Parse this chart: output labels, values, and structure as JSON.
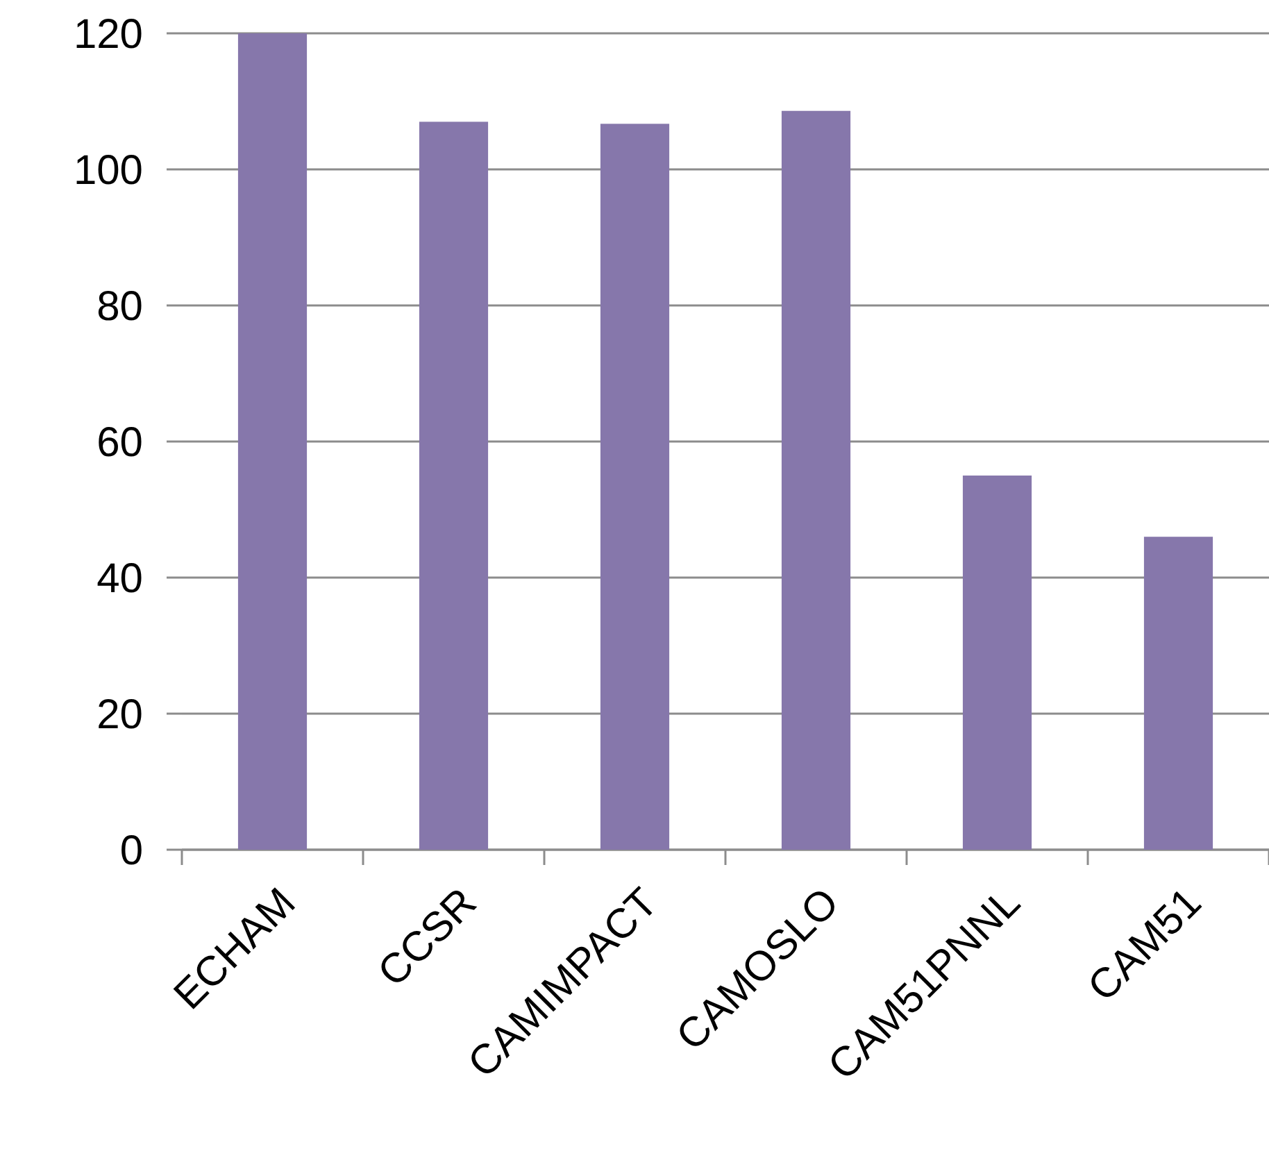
{
  "chart_data": {
    "type": "bar",
    "categories": [
      "ECHAM",
      "CCSR",
      "CAMIMPACT",
      "CAMOSLO",
      "CAM51PNNL",
      "CAM51"
    ],
    "values": [
      120,
      107,
      106.7,
      108.6,
      55,
      46
    ],
    "color": "#8677ab",
    "ylim": [
      0,
      120
    ],
    "yticks": [
      0,
      20,
      40,
      60,
      80,
      100,
      120
    ],
    "grid": "y"
  }
}
